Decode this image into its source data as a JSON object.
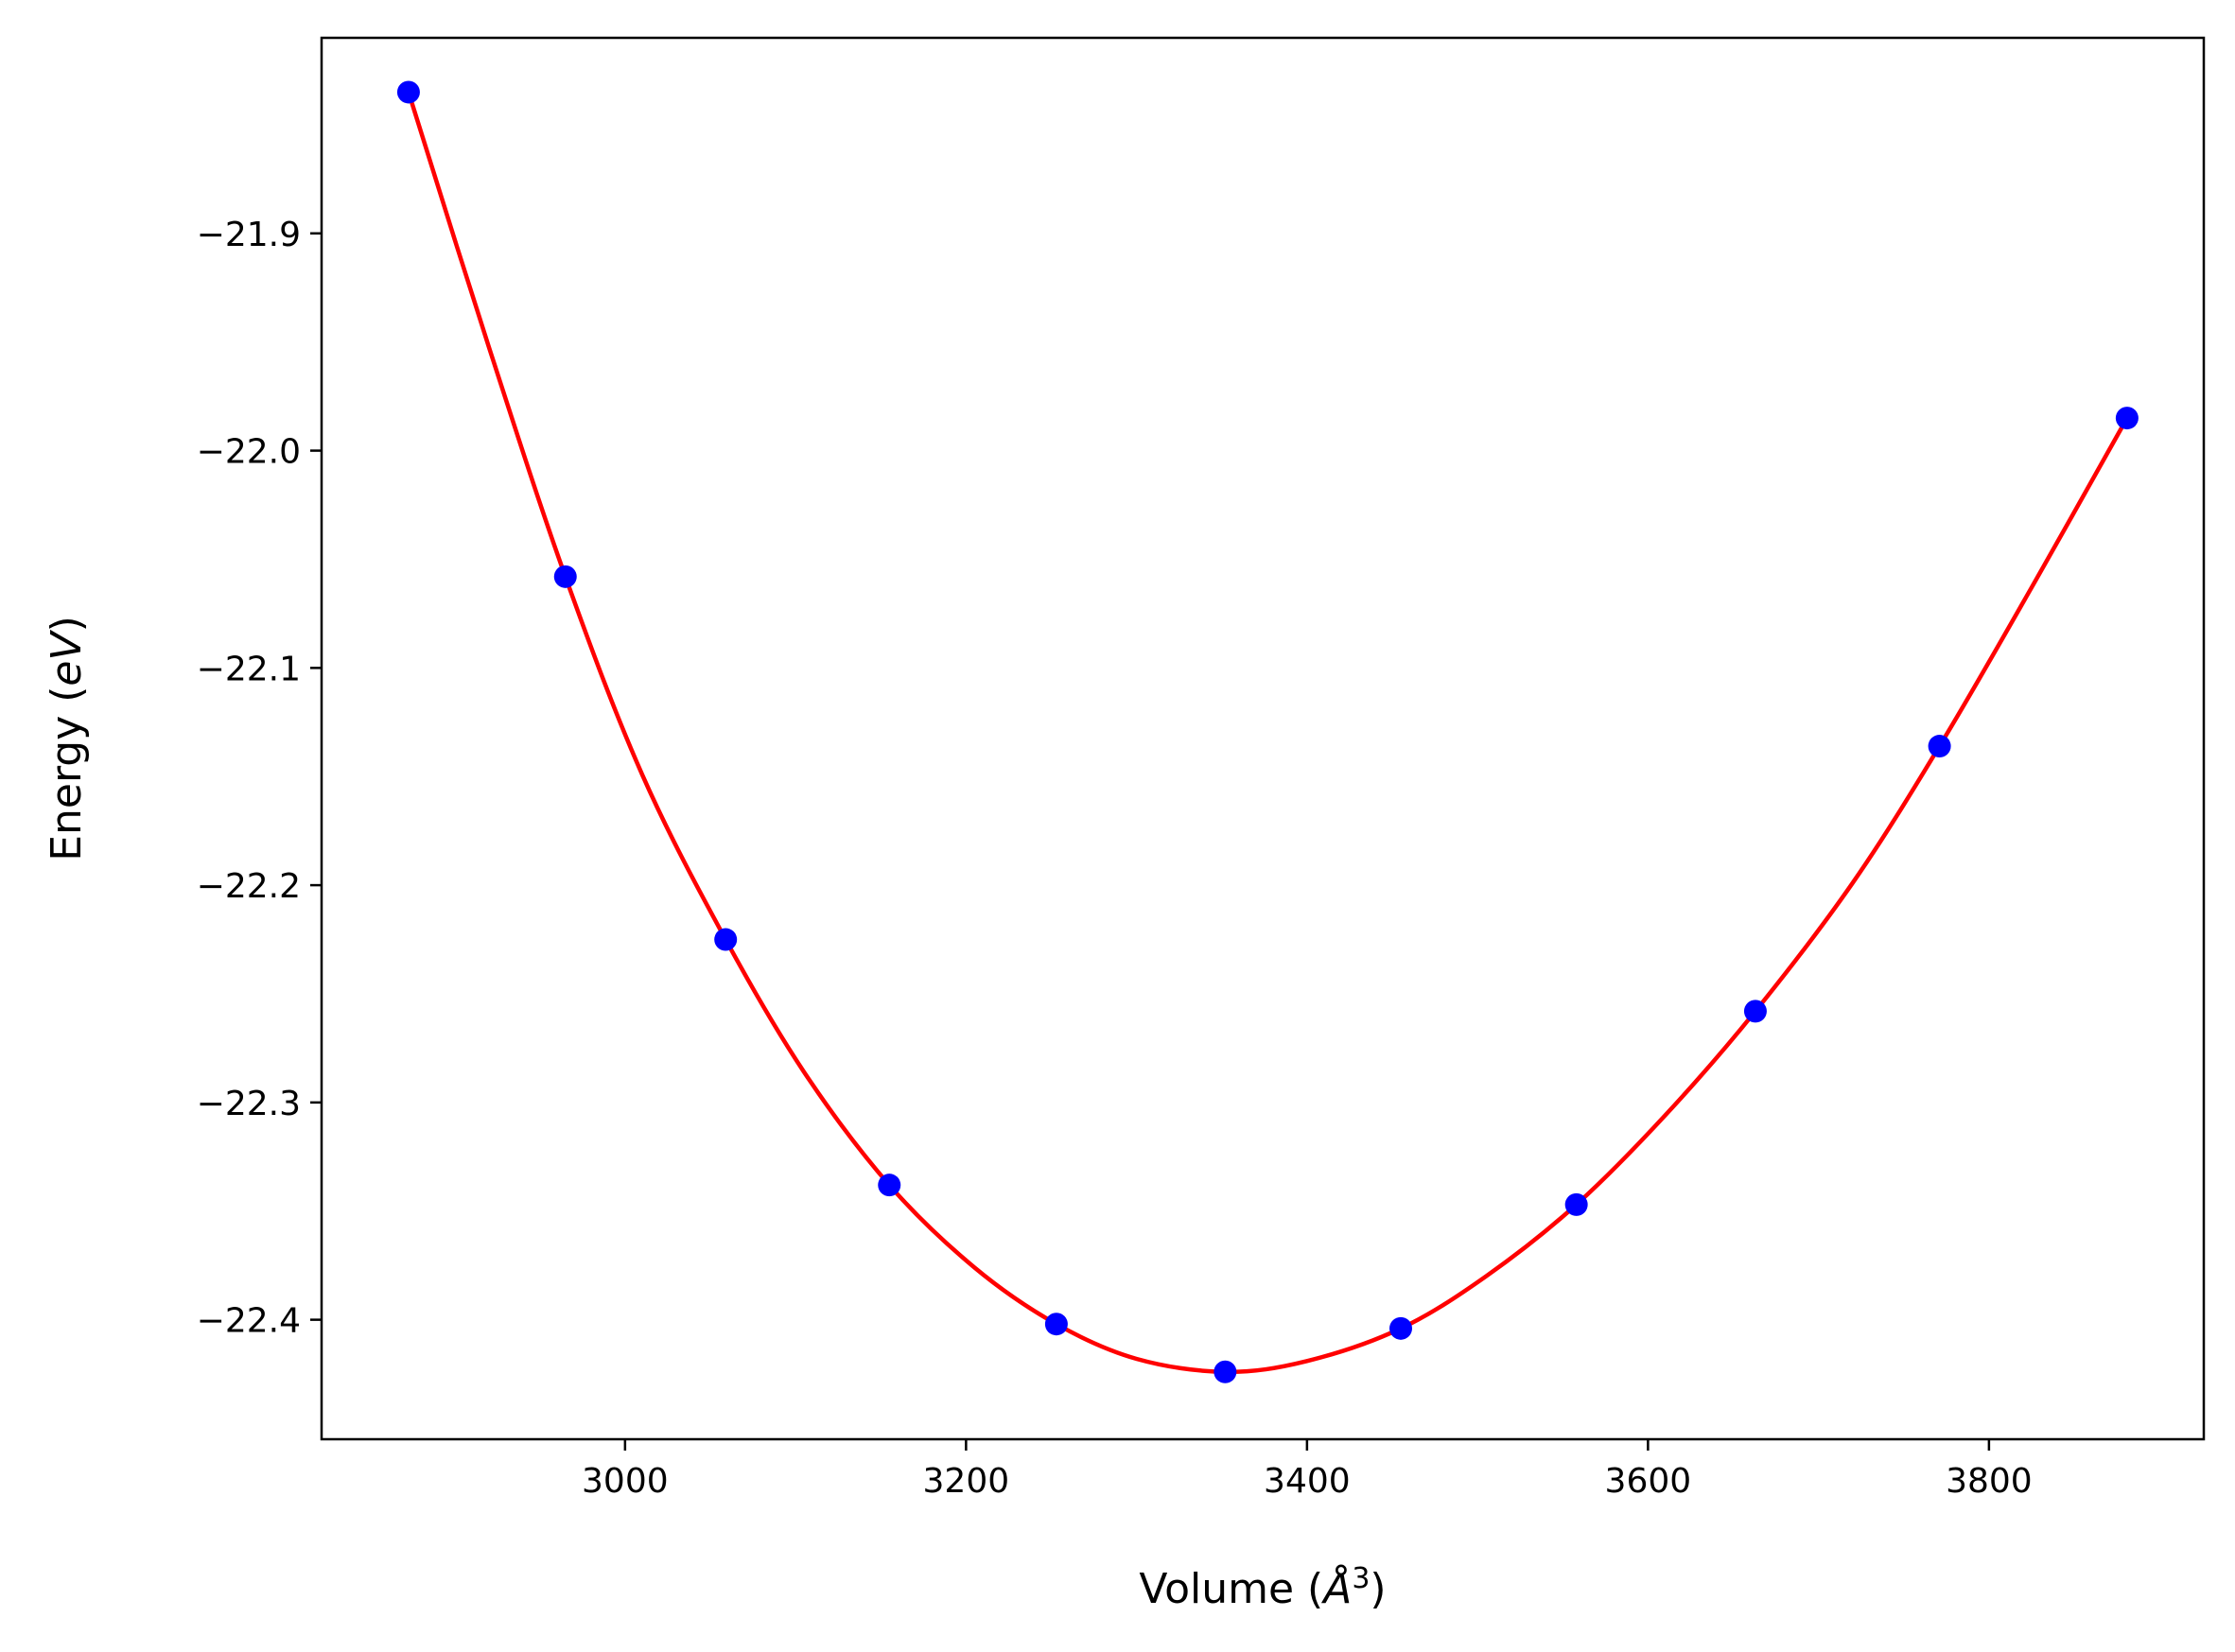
{
  "chart_data": {
    "type": "line",
    "title": "",
    "xlabel": {
      "prefix": "Volume (",
      "symbol": "Å",
      "superscript": "3",
      "suffix": ")"
    },
    "ylabel": {
      "prefix": "Energy (",
      "symbol": "eV",
      "suffix": ")"
    },
    "xlim": [
      2822,
      3926
    ],
    "ylim": [
      -22.455,
      -21.81
    ],
    "xticks": [
      3000,
      3200,
      3400,
      3600,
      3800
    ],
    "xtick_labels": [
      "3000",
      "3200",
      "3400",
      "3600",
      "3800"
    ],
    "yticks": [
      -21.9,
      -22.0,
      -22.1,
      -22.2,
      -22.3,
      -22.4
    ],
    "ytick_labels": [
      "−21.9",
      "−22.0",
      "−22.1",
      "−22.2",
      "−22.3",
      "−22.4"
    ],
    "grid": false,
    "series": [
      {
        "kind": "points",
        "color": "#0000ff",
        "x": [
          2873,
          2965,
          3059,
          3155,
          3253,
          3352,
          3455,
          3558,
          3663,
          3771,
          3881
        ],
        "y": [
          -21.835,
          -22.058,
          -22.225,
          -22.338,
          -22.402,
          -22.424,
          -22.404,
          -22.347,
          -22.258,
          -22.136,
          -21.985
        ]
      },
      {
        "kind": "fit",
        "color": "#ff0000",
        "x": [
          2873,
          2920,
          2965,
          3010,
          3059,
          3105,
          3155,
          3205,
          3253,
          3300,
          3352,
          3400,
          3455,
          3505,
          3558,
          3610,
          3663,
          3720,
          3771,
          3825,
          3881
        ],
        "y": [
          -21.835,
          -21.952,
          -22.058,
          -22.149,
          -22.225,
          -22.286,
          -22.338,
          -22.376,
          -22.402,
          -22.418,
          -22.424,
          -22.419,
          -22.404,
          -22.38,
          -22.347,
          -22.306,
          -22.258,
          -22.199,
          -22.136,
          -22.063,
          -21.985
        ]
      }
    ]
  }
}
